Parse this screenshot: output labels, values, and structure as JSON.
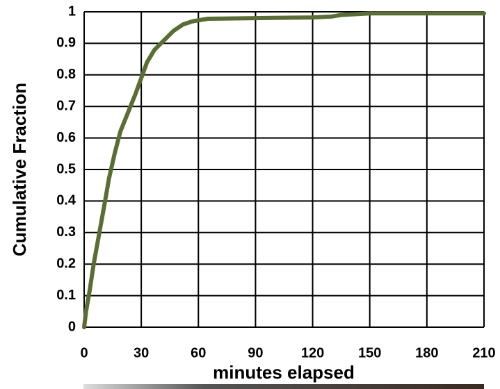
{
  "chart_data": {
    "type": "line",
    "ylabel": "Cumulative Fraction",
    "xlabel": "minutes elapsed",
    "x": [
      0,
      1,
      3,
      5,
      8,
      11,
      13,
      16,
      19,
      23,
      27,
      30,
      33,
      37,
      42,
      47,
      52,
      57,
      65,
      90,
      120,
      130,
      135,
      150,
      210
    ],
    "values": [
      0,
      0.05,
      0.12,
      0.2,
      0.3,
      0.4,
      0.47,
      0.55,
      0.62,
      0.68,
      0.74,
      0.79,
      0.84,
      0.88,
      0.91,
      0.94,
      0.96,
      0.97,
      0.978,
      0.98,
      0.982,
      0.985,
      0.99,
      0.995,
      0.995
    ],
    "color": "#5a6e34",
    "xlim": [
      0,
      210
    ],
    "xticks": [
      0,
      30,
      60,
      90,
      120,
      150,
      180,
      210
    ],
    "ylim": [
      0,
      1
    ],
    "yticks": [
      0,
      0.1,
      0.2,
      0.3,
      0.4,
      0.5,
      0.6,
      0.7,
      0.8,
      0.9,
      1
    ],
    "grid": true
  }
}
